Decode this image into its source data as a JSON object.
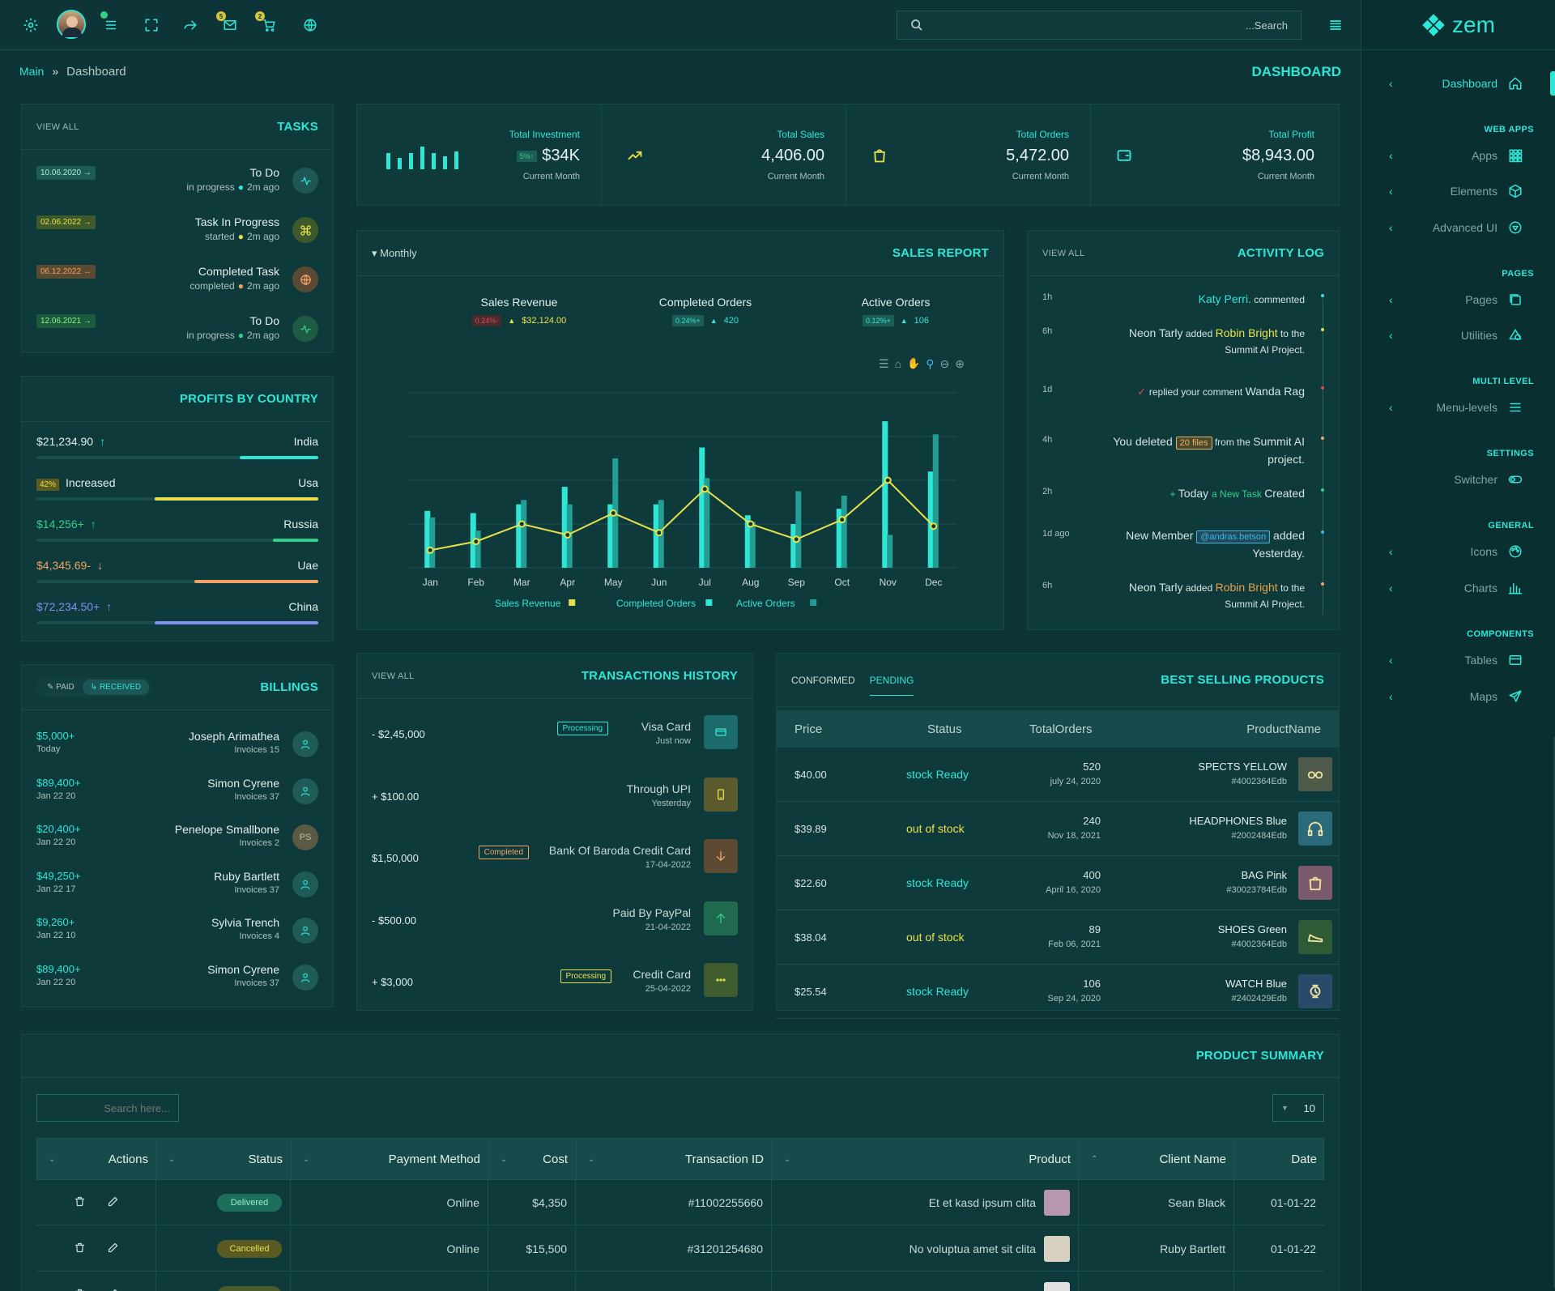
{
  "header": {
    "search_placeholder": "...Search",
    "mail_count": "5",
    "cart_count": "2"
  },
  "breadcrumb": {
    "main": "Main",
    "sep": "»",
    "current": "Dashboard"
  },
  "page_title": "DASHBOARD",
  "logo": "zem",
  "sidebar": {
    "items": [
      {
        "label": "Dashboard",
        "icon": "home-icon",
        "category": null
      },
      {
        "label": "Apps",
        "icon": "grid-icon",
        "category": "WEB APPS"
      },
      {
        "label": "Elements",
        "icon": "cube-icon",
        "category": null
      },
      {
        "label": "Advanced UI",
        "icon": "layers-icon",
        "category": null
      },
      {
        "label": "Pages",
        "icon": "pages-icon",
        "category": "PAGES"
      },
      {
        "label": "Utilities",
        "icon": "shapes-icon",
        "category": null
      },
      {
        "label": "Menu-levels",
        "icon": "menu-icon",
        "category": "MULTI LEVEL"
      },
      {
        "label": "Switcher",
        "icon": "toggle-icon",
        "category": "SETTINGS"
      },
      {
        "label": "Icons",
        "icon": "palette-icon",
        "category": "GENERAL"
      },
      {
        "label": "Charts",
        "icon": "bar-chart-icon",
        "category": null
      },
      {
        "label": "Tables",
        "icon": "table-icon",
        "category": "COMPONENTS"
      },
      {
        "label": "Maps",
        "icon": "send-icon",
        "category": null
      }
    ]
  },
  "tasks": {
    "view_all": "VIEW ALL",
    "title": "TASKS",
    "items": [
      {
        "date": "10.06.2020 →",
        "name": "To Do",
        "status": "in progress",
        "ago": "2m ago",
        "icon": "activity-icon"
      },
      {
        "date": "02.06.2022 →",
        "name": "Task In Progress",
        "status": "started",
        "ago": "2m ago",
        "icon": "command-icon"
      },
      {
        "date": "06.12.2022 →",
        "name": "Completed Task",
        "status": "completed",
        "ago": "2m ago",
        "icon": "globe-icon"
      },
      {
        "date": "12.06.2021 →",
        "name": "To Do",
        "status": "in progress",
        "ago": "2m ago",
        "icon": "activity-icon"
      }
    ]
  },
  "profits": {
    "title": "PROFITS BY COUNTRY",
    "items": [
      {
        "value": "$21,234.90",
        "country": "India",
        "color": "#2ee6d6",
        "level": 0.28
      },
      {
        "value": "Increased",
        "badge": "42%",
        "country": "Usa",
        "color": "#e8e14a",
        "level": 0.58
      },
      {
        "value": "$14,256+",
        "country": "Russia",
        "color": "#2fd08a",
        "level": 0.16
      },
      {
        "value": "$4,345.69-",
        "country": "Uae",
        "color": "#f0a266",
        "level": 0.44
      },
      {
        "value": "$72,234.50+",
        "country": "China",
        "color": "#7f8ff0",
        "level": 0.58
      }
    ]
  },
  "billings": {
    "title": "BILLINGS",
    "tab_paid": "PAID",
    "tab_received": "RECEIVED",
    "items": [
      {
        "amount": "$5,000+",
        "date": "Today",
        "name": "Joseph Arimathea",
        "invoices": "Invoices 15",
        "avatar": "user-icon"
      },
      {
        "amount": "$89,400+",
        "date": "Jan 22 20",
        "name": "Simon Cyrene",
        "invoices": "Invoices 37",
        "avatar": "user-icon"
      },
      {
        "amount": "$20,400+",
        "date": "Jan 22 20",
        "name": "Penelope Smallbone",
        "invoices": "Invoices 2",
        "avatar": "PS"
      },
      {
        "amount": "$49,250+",
        "date": "Jan 22 17",
        "name": "Ruby Bartlett",
        "invoices": "Invoices 37",
        "avatar": "user-icon"
      },
      {
        "amount": "$9,260+",
        "date": "Jan 22 10",
        "name": "Sylvia Trench",
        "invoices": "Invoices 4",
        "avatar": "user-icon"
      },
      {
        "amount": "$89,400+",
        "date": "Jan 22 20",
        "name": "Simon Cyrene",
        "invoices": "Invoices 37",
        "avatar": "user-icon"
      }
    ]
  },
  "stats": [
    {
      "label": "Total Investment",
      "value": "$34K",
      "badge": "5%↑",
      "sub": "Current Month",
      "icon": "mini-bars"
    },
    {
      "label": "Total Sales",
      "value": "4,406.00",
      "sub": "Current Month",
      "icon": "trending-up-icon"
    },
    {
      "label": "Total Orders",
      "value": "5,472.00",
      "sub": "Current Month",
      "icon": "shopping-bag-icon"
    },
    {
      "label": "Total Profit",
      "value": "$8,943.00",
      "sub": "Current Month",
      "icon": "wallet-icon"
    }
  ],
  "sales_report": {
    "title": "SALES REPORT",
    "period": "Monthly",
    "metrics": [
      {
        "label": "Sales Revenue",
        "change": "0.24%-",
        "value": "$32,124.00",
        "change_color": "#e04a4a",
        "value_color": "#e8e14a"
      },
      {
        "label": "Completed Orders",
        "change": "0.24%+",
        "value": "420",
        "change_color": "#2ee6d6",
        "value_color": "#2ee6d6"
      },
      {
        "label": "Active Orders",
        "change": "0.12%+",
        "value": "106",
        "change_color": "#2ee6d6",
        "value_color": "#2ee6d6"
      }
    ]
  },
  "chart_data": {
    "type": "bar",
    "categories": [
      "Jan",
      "Feb",
      "Mar",
      "Apr",
      "May",
      "Jun",
      "Jul",
      "Aug",
      "Sep",
      "Oct",
      "Nov",
      "Dec"
    ],
    "series": [
      {
        "name": "Sales Revenue",
        "type": "line",
        "color": "#e8e14a",
        "values": [
          8,
          12,
          20,
          15,
          25,
          16,
          36,
          20,
          13,
          22,
          40,
          19
        ]
      },
      {
        "name": "Completed Orders",
        "type": "bar",
        "color": "#2ee6d6",
        "values": [
          26,
          25,
          29,
          37,
          29,
          29,
          55,
          24,
          20,
          27,
          67,
          44
        ]
      },
      {
        "name": "Active Orders",
        "type": "bar",
        "color": "#229e94",
        "values": [
          23,
          17,
          31,
          29,
          50,
          31,
          41,
          21,
          35,
          33,
          15,
          61
        ]
      }
    ],
    "ylim": [
      0,
      80
    ],
    "grid": true,
    "legend": "bottom"
  },
  "activity": {
    "view_all": "VIEW ALL",
    "title": "ACTIVITY LOG",
    "items": [
      {
        "time": "1h",
        "dot": "#2ee6d6",
        "parts": [
          {
            "t": "Katy Perri.",
            "c": "#2ee6d6",
            "s": 14
          },
          {
            "t": " commented",
            "c": "#d4e4e2",
            "s": 12
          }
        ]
      },
      {
        "time": "6h",
        "dot": "#e8e14a",
        "parts": [
          {
            "t": "Neon Tarly",
            "c": "#d4e4e2",
            "s": 14
          },
          {
            "t": " added ",
            "c": "#d4e4e2",
            "s": 12
          },
          {
            "t": "Robin Bright",
            "c": "#e8e14a",
            "s": 14
          },
          {
            "t": " to the Summit AI Project.",
            "c": "#d4e4e2",
            "s": 12
          }
        ]
      },
      {
        "time": "1d",
        "dot": "#e04a4a",
        "parts": [
          {
            "t": "✓ ",
            "c": "#e04a4a",
            "s": 13
          },
          {
            "t": "replied your comment ",
            "c": "#d4e4e2",
            "s": 12
          },
          {
            "t": "Wanda Rag",
            "c": "#d4e4e2",
            "s": 14
          }
        ]
      },
      {
        "time": "4h",
        "dot": "#f0a266",
        "parts": [
          {
            "t": "You deleted ",
            "c": "#d4e4e2",
            "s": 14
          },
          {
            "t": "20 files",
            "c": "#e8b06a",
            "s": 11,
            "badge": true
          },
          {
            "t": " from the ",
            "c": "#d4e4e2",
            "s": 12
          },
          {
            "t": "Summit AI project.",
            "c": "#d4e4e2",
            "s": 14
          }
        ]
      },
      {
        "time": "2h",
        "dot": "#2fd08a",
        "parts": [
          {
            "t": "+ ",
            "c": "#2fd08a",
            "s": 12
          },
          {
            "t": "Today ",
            "c": "#d4e4e2",
            "s": 14
          },
          {
            "t": "a New Task ",
            "c": "#2fd08a",
            "s": 12
          },
          {
            "t": "Created",
            "c": "#d4e4e2",
            "s": 14
          }
        ]
      },
      {
        "time": "1d ago",
        "dot": "#3fb8e8",
        "parts": [
          {
            "t": "New Member ",
            "c": "#d4e4e2",
            "s": 14
          },
          {
            "t": "@andras.betson",
            "c": "#3fb8e8",
            "s": 11,
            "badge": true
          },
          {
            "t": " added Yesterday.",
            "c": "#d4e4e2",
            "s": 14
          }
        ]
      },
      {
        "time": "6h",
        "dot": "#f0a266",
        "parts": [
          {
            "t": "Neon Tarly",
            "c": "#d4e4e2",
            "s": 14
          },
          {
            "t": " added ",
            "c": "#d4e4e2",
            "s": 12
          },
          {
            "t": "Robin Bright",
            "c": "#e8a04a",
            "s": 14
          },
          {
            "t": " to the Summit AI Project.",
            "c": "#d4e4e2",
            "s": 12
          }
        ]
      }
    ]
  },
  "transactions": {
    "view_all": "VIEW ALL",
    "title": "TRANSACTIONS HISTORY",
    "items": [
      {
        "amount": "- $2,45,000",
        "name": "Visa Card",
        "sub": "Just now",
        "badge": "Processing",
        "badge_color": "#2ee6d6",
        "icon_bg": "#1d6a6a",
        "icon_color": "#2ee6d6",
        "icon": "credit-card-icon"
      },
      {
        "amount": "+ $100.00",
        "name": "Through UPI",
        "sub": "Yesterday",
        "badge": "",
        "badge_color": "",
        "icon_bg": "#5a5a2e",
        "icon_color": "#e8e14a",
        "icon": "phone-icon"
      },
      {
        "amount": "$1,50,000",
        "name": "Bank Of Baroda Credit Card",
        "sub": "17-04-2022",
        "badge": "Completed",
        "badge_color": "#f0a266",
        "icon_bg": "#5c4a33",
        "icon_color": "#f0a266",
        "icon": "arrow-down-icon"
      },
      {
        "amount": "- $500.00",
        "name": "Paid By PayPal",
        "sub": "21-04-2022",
        "badge": "",
        "badge_color": "",
        "icon_bg": "#1f6a4e",
        "icon_color": "#2fd08a",
        "icon": "arrow-up-icon"
      },
      {
        "amount": "+ $3,000",
        "name": "Credit Card",
        "sub": "25-04-2022",
        "badge": "Processing",
        "badge_color": "#e8e14a",
        "icon_bg": "#3f5c2f",
        "icon_color": "#e8e14a",
        "icon": "more-icon"
      }
    ]
  },
  "best_selling": {
    "title": "BEST SELLING PRODUCTS",
    "tab_conformed": "CONFORMED",
    "tab_pending": "PENDING",
    "headers": [
      "Price",
      "Status",
      "TotalOrders",
      "ProductName"
    ],
    "items": [
      {
        "price": "$40.00",
        "status": "stock Ready",
        "status_color": "#2ee6d6",
        "orders": "520",
        "date": "july 24, 2020",
        "name": "SPECTS YELLOW",
        "id": "#4002364Edb",
        "img_bg": "#4e5a4a",
        "icon": "glasses-icon"
      },
      {
        "price": "$39.89",
        "status": "out of stock",
        "status_color": "#e8e14a",
        "orders": "240",
        "date": "Nov 18, 2021",
        "name": "HEADPHONES Blue",
        "id": "#2002484Edb",
        "img_bg": "#2a6a7a",
        "icon": "headphones-icon"
      },
      {
        "price": "$22.60",
        "status": "stock Ready",
        "status_color": "#2ee6d6",
        "orders": "400",
        "date": "April 16, 2020",
        "name": "BAG Pink",
        "id": "#30023784Edb",
        "img_bg": "#7a5a6a",
        "icon": "bag-icon"
      },
      {
        "price": "$38.04",
        "status": "out of stock",
        "status_color": "#e8e14a",
        "orders": "89",
        "date": "Feb 06, 2021",
        "name": "SHOES Green",
        "id": "#4002364Edb",
        "img_bg": "#2e5a36",
        "icon": "shoe-icon"
      },
      {
        "price": "$25.54",
        "status": "stock Ready",
        "status_color": "#2ee6d6",
        "orders": "106",
        "date": "Sep 24, 2020",
        "name": "WATCH Blue",
        "id": "#2402429Edb",
        "img_bg": "#2a4a6a",
        "icon": "watch-icon"
      }
    ]
  },
  "summary": {
    "title": "PRODUCT SUMMARY",
    "search_placeholder": "Search here...",
    "page_size": "10",
    "headers": [
      "Actions",
      "Status",
      "Payment Method",
      "Cost",
      "Transaction ID",
      "Product",
      "Client Name",
      "Date"
    ],
    "rows": [
      {
        "status": "Delivered",
        "status_bg": "#1e6e5c",
        "status_color": "#8ff0d0",
        "payment": "Online",
        "cost": "$4,350",
        "txid": "#11002255660",
        "product": "Et et kasd ipsum clita",
        "client": "Sean Black",
        "date": "01-01-22",
        "img_bg": "#b898b0"
      },
      {
        "status": "Cancelled",
        "status_bg": "#5a5a22",
        "status_color": "#e8e14a",
        "payment": "Online",
        "cost": "$15,500",
        "txid": "#31201254680",
        "product": "No voluptua amet sit clita",
        "client": "Ruby Bartlett",
        "date": "01-01-22",
        "img_bg": "#d8d0c0"
      },
      {
        "status": "",
        "status_bg": "#4a5a2a",
        "status_color": "#e8e14a",
        "payment": "",
        "cost": "",
        "txid": "",
        "product": "",
        "client": "",
        "date": "",
        "img_bg": "#e0e0e0"
      }
    ]
  }
}
